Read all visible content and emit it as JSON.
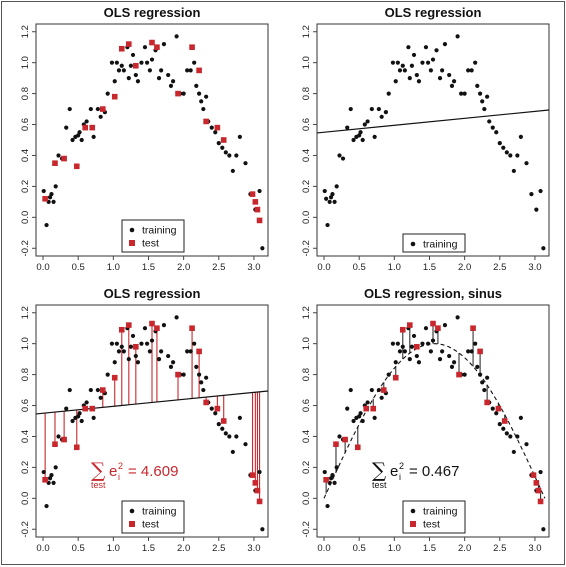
{
  "colors": {
    "training": "#111111",
    "test": "#c8282d",
    "line": "#111111",
    "residual": "#c8282d"
  },
  "chart_data": [
    {
      "type": "scatter",
      "title": "OLS regression",
      "xlim": [
        -0.1,
        3.2
      ],
      "ylim": [
        -0.25,
        1.25
      ],
      "xticks": [
        "0.0",
        "0.5",
        "1.0",
        "1.5",
        "2.0",
        "2.5",
        "3.0"
      ],
      "yticks": [
        "-0.2",
        "0.0",
        "0.2",
        "0.4",
        "0.6",
        "0.8",
        "1.0",
        "1.2"
      ],
      "show_training": true,
      "show_test": true,
      "legend": [
        "training",
        "test"
      ],
      "legend_position": "bottom-center"
    },
    {
      "type": "scatter",
      "title": "OLS regression",
      "xlim": [
        -0.1,
        3.2
      ],
      "ylim": [
        -0.25,
        1.25
      ],
      "xticks": [
        "0.0",
        "0.5",
        "1.0",
        "1.5",
        "2.0",
        "2.5",
        "3.0"
      ],
      "yticks": [
        "-0.2",
        "0.0",
        "0.2",
        "0.4",
        "0.6",
        "0.8",
        "1.0",
        "1.2"
      ],
      "show_training": true,
      "show_test": false,
      "fit_line": {
        "intercept": 0.55,
        "slope": 0.045
      },
      "legend": [
        "training"
      ],
      "legend_position": "bottom-center"
    },
    {
      "type": "scatter",
      "title": "OLS regression",
      "xlim": [
        -0.1,
        3.2
      ],
      "ylim": [
        -0.25,
        1.25
      ],
      "xticks": [
        "0.0",
        "0.5",
        "1.0",
        "1.5",
        "2.0",
        "2.5",
        "3.0"
      ],
      "yticks": [
        "-0.2",
        "0.0",
        "0.2",
        "0.4",
        "0.6",
        "0.8",
        "1.0",
        "1.2"
      ],
      "show_training": true,
      "show_test": true,
      "fit_line": {
        "intercept": 0.55,
        "slope": 0.045
      },
      "residuals_to": "line",
      "annotation": {
        "prefix": "test",
        "expression": "e",
        "superscript": "2",
        "subscript": "i",
        "value": "= 4.609",
        "color": "#c8282d"
      },
      "legend": [
        "training",
        "test"
      ],
      "legend_position": "bottom-center"
    },
    {
      "type": "scatter",
      "title": "OLS regression, sinus",
      "xlim": [
        -0.1,
        3.2
      ],
      "ylim": [
        -0.25,
        1.25
      ],
      "xticks": [
        "0.0",
        "0.5",
        "1.0",
        "1.5",
        "2.0",
        "2.5",
        "3.0"
      ],
      "yticks": [
        "-0.2",
        "0.0",
        "0.2",
        "0.4",
        "0.6",
        "0.8",
        "1.0",
        "1.2"
      ],
      "show_training": true,
      "show_test": true,
      "fit_curve": "sin",
      "residuals_to": "curve",
      "annotation": {
        "prefix": "test",
        "expression": "e",
        "superscript": "2",
        "subscript": "i",
        "value": "= 0.467",
        "color": "#111111"
      },
      "legend": [
        "training",
        "test"
      ],
      "legend_position": "bottom-center"
    }
  ],
  "training_points": {
    "x": [
      0.01,
      0.03,
      0.05,
      0.08,
      0.1,
      0.12,
      0.15,
      0.18,
      0.22,
      0.27,
      0.33,
      0.38,
      0.42,
      0.46,
      0.5,
      0.52,
      0.55,
      0.58,
      0.62,
      0.68,
      0.72,
      0.78,
      0.82,
      0.88,
      0.92,
      0.98,
      1.02,
      1.05,
      1.08,
      1.12,
      1.15,
      1.2,
      1.22,
      1.25,
      1.28,
      1.32,
      1.35,
      1.4,
      1.45,
      1.48,
      1.52,
      1.55,
      1.6,
      1.65,
      1.68,
      1.72,
      1.78,
      1.82,
      1.85,
      1.9,
      1.95,
      2.0,
      2.05,
      2.1,
      2.15,
      2.18,
      2.22,
      2.25,
      2.28,
      2.32,
      2.35,
      2.4,
      2.45,
      2.5,
      2.55,
      2.6,
      2.65,
      2.7,
      2.75,
      2.8,
      2.88,
      2.95,
      3.02,
      3.08,
      3.12
    ],
    "y": [
      0.17,
      0.12,
      -0.05,
      0.1,
      0.13,
      0.15,
      0.1,
      0.2,
      0.4,
      0.38,
      0.58,
      0.7,
      0.5,
      0.52,
      0.53,
      0.55,
      0.5,
      0.6,
      0.62,
      0.7,
      0.52,
      0.7,
      0.65,
      0.68,
      0.8,
      1.0,
      0.88,
      1.0,
      0.95,
      0.98,
      0.95,
      1.1,
      0.9,
      0.98,
      1.05,
      0.92,
      0.88,
      1.0,
      1.1,
      1.0,
      0.95,
      1.02,
      1.08,
      0.9,
      0.95,
      1.12,
      0.92,
      0.85,
      0.88,
      1.17,
      0.8,
      0.8,
      0.95,
      0.95,
      1.0,
      0.85,
      0.8,
      0.75,
      0.7,
      0.78,
      0.62,
      0.58,
      0.55,
      0.48,
      0.45,
      0.42,
      0.4,
      0.3,
      0.4,
      0.52,
      0.35,
      0.15,
      0.05,
      0.17,
      -0.2
    ]
  },
  "test_points": {
    "x": [
      0.03,
      0.17,
      0.3,
      0.48,
      0.6,
      0.7,
      0.85,
      1.02,
      1.12,
      1.22,
      1.32,
      1.55,
      1.62,
      1.92,
      2.12,
      2.22,
      2.32,
      2.48,
      2.57,
      2.98,
      3.02,
      3.05,
      3.08
    ],
    "y": [
      0.12,
      0.35,
      0.38,
      0.33,
      0.58,
      0.58,
      0.7,
      0.78,
      1.09,
      1.12,
      0.98,
      1.13,
      1.1,
      0.8,
      1.1,
      0.95,
      0.62,
      0.58,
      0.5,
      0.15,
      0.1,
      0.05,
      -0.02
    ]
  }
}
